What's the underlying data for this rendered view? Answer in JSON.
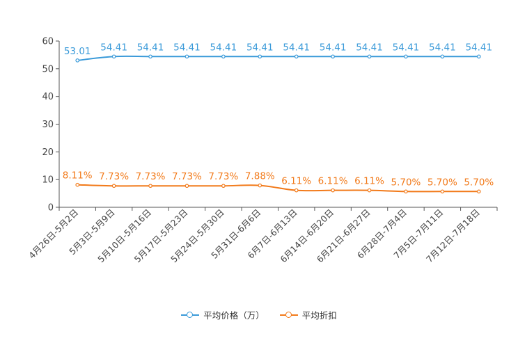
{
  "chart_data": {
    "type": "line",
    "categories": [
      "4月26日-5月2日",
      "5月3日-5月9日",
      "5月10日-5月16日",
      "5月17日-5月23日",
      "5月24日-5月30日",
      "5月31日-6月6日",
      "6月7日-6月13日",
      "6月14日-6月20日",
      "6月21日-6月27日",
      "6月28日-7月4日",
      "7月5日-7月11日",
      "7月12日-7月18日"
    ],
    "ylim": [
      0,
      60
    ],
    "yticks": [
      0,
      10,
      20,
      30,
      40,
      50,
      60
    ],
    "series": [
      {
        "name": "平均价格（万）",
        "color": "#3a9ad9",
        "values": [
          53.01,
          54.41,
          54.41,
          54.41,
          54.41,
          54.41,
          54.41,
          54.41,
          54.41,
          54.41,
          54.41,
          54.41
        ],
        "labels": [
          "53.01",
          "54.41",
          "54.41",
          "54.41",
          "54.41",
          "54.41",
          "54.41",
          "54.41",
          "54.41",
          "54.41",
          "54.41",
          "54.41"
        ]
      },
      {
        "name": "平均折扣",
        "color": "#f27a1a",
        "values": [
          8.11,
          7.73,
          7.73,
          7.73,
          7.73,
          7.88,
          6.11,
          6.11,
          6.11,
          5.7,
          5.7,
          5.7
        ],
        "labels": [
          "8.11%",
          "7.73%",
          "7.73%",
          "7.73%",
          "7.73%",
          "7.88%",
          "6.11%",
          "6.11%",
          "6.11%",
          "5.70%",
          "5.70%",
          "5.70%"
        ]
      }
    ],
    "legend_position": "bottom-center"
  }
}
